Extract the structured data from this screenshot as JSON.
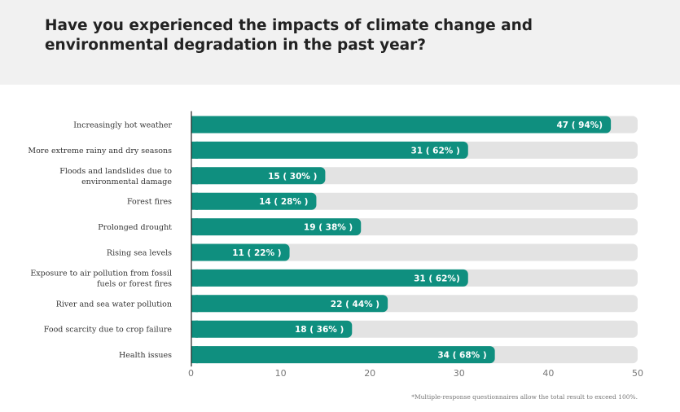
{
  "title": "Have you experienced the impacts of climate change and environmental degradation in the past year?",
  "footnote": "*Multiple-response questionnaires allow the total result to exceed 100%.",
  "colors": {
    "bar": "#0f8f7f",
    "track": "#e3e3e3",
    "header_bg": "#f1f1f1"
  },
  "chart_data": {
    "type": "bar",
    "orientation": "horizontal",
    "xlim": [
      0,
      50
    ],
    "xticks": [
      0,
      10,
      20,
      30,
      40,
      50
    ],
    "grid": false,
    "categories": [
      [
        "Increasingly hot weather"
      ],
      [
        "More extreme rainy and dry seasons"
      ],
      [
        "Floods and landslides due to",
        "environmental damage"
      ],
      [
        "Forest fires"
      ],
      [
        "Prolonged drought"
      ],
      [
        "Rising sea levels"
      ],
      [
        "Exposure to air pollution from fossil",
        "fuels or forest fires"
      ],
      [
        "River and sea water pollution"
      ],
      [
        "Food scarcity due to crop failure"
      ],
      [
        "Health issues"
      ]
    ],
    "values": [
      47,
      31,
      15,
      14,
      19,
      11,
      31,
      22,
      18,
      34
    ],
    "labels": [
      "47 ( 94%)",
      "31 ( 62% )",
      "15 ( 30% )",
      "14 ( 28% )",
      "19 ( 38% )",
      "11 ( 22% )",
      "31 ( 62%)",
      "22 ( 44% )",
      "18 ( 36% )",
      "34 ( 68% )"
    ]
  }
}
